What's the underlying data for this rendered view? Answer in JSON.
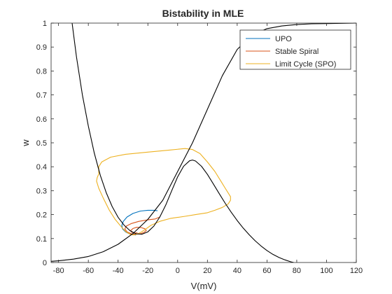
{
  "chart_data": {
    "type": "line",
    "title": "Bistability in MLE",
    "xlabel": "V(mV)",
    "ylabel": "w",
    "xlim": [
      -85,
      120
    ],
    "ylim": [
      0,
      1
    ],
    "xticks": [
      -80,
      -60,
      -40,
      -20,
      0,
      20,
      40,
      60,
      80,
      100,
      120
    ],
    "yticks": [
      0,
      0.1,
      0.2,
      0.3,
      0.4,
      0.5,
      0.6,
      0.7,
      0.8,
      0.9,
      1
    ],
    "xtick_labels": [
      "-80",
      "-60",
      "-40",
      "-20",
      "0",
      "20",
      "40",
      "60",
      "80",
      "100",
      "120"
    ],
    "ytick_labels": [
      "0",
      "0.1",
      "0.2",
      "0.3",
      "0.4",
      "0.5",
      "0.6",
      "0.7",
      "0.8",
      "0.9",
      "1"
    ],
    "grid": false,
    "legend_position": "top-right",
    "series": [
      {
        "name": "UPO",
        "color": "#0072BD",
        "x": [
          -13.5,
          -16,
          -20,
          -25,
          -30,
          -34,
          -36.5,
          -37.5,
          -37,
          -35,
          -32.5,
          -30,
          -28
        ],
        "y": [
          0.216,
          0.218,
          0.218,
          0.215,
          0.205,
          0.19,
          0.172,
          0.155,
          0.14,
          0.128,
          0.12,
          0.116,
          0.115
        ]
      },
      {
        "name": "Stable Spiral",
        "color": "#D95319",
        "x": [
          -12,
          -15,
          -20,
          -26,
          -31,
          -34.5,
          -35.5,
          -34,
          -31,
          -28,
          -25,
          -22.5,
          -21,
          -22,
          -24.5,
          -27.5,
          -30,
          -31.5,
          -31,
          -29,
          -27
        ],
        "y": [
          0.19,
          0.182,
          0.178,
          0.172,
          0.163,
          0.152,
          0.14,
          0.128,
          0.12,
          0.118,
          0.12,
          0.126,
          0.134,
          0.141,
          0.146,
          0.147,
          0.142,
          0.134,
          0.127,
          0.123,
          0.124
        ]
      },
      {
        "name": "Limit Cycle (SPO)",
        "color": "#EDB120",
        "x": [
          -53,
          -53,
          -51,
          -45,
          -35,
          -20,
          -5,
          5,
          10,
          15,
          20,
          25,
          29,
          32,
          34,
          35.5,
          35.5,
          34,
          30,
          25,
          20,
          12,
          5,
          -5,
          -12,
          -18,
          -22,
          -25,
          -28,
          -30,
          -32,
          -35,
          -38,
          -42,
          -46,
          -50,
          -53,
          -54.5,
          -54,
          -53
        ],
        "y": [
          0.37,
          0.4,
          0.42,
          0.44,
          0.452,
          0.461,
          0.47,
          0.476,
          0.472,
          0.455,
          0.42,
          0.38,
          0.34,
          0.31,
          0.29,
          0.275,
          0.26,
          0.245,
          0.23,
          0.218,
          0.208,
          0.2,
          0.193,
          0.184,
          0.172,
          0.155,
          0.137,
          0.125,
          0.117,
          0.115,
          0.118,
          0.13,
          0.15,
          0.18,
          0.22,
          0.27,
          0.31,
          0.34,
          0.355,
          0.37
        ]
      },
      {
        "color": "#000000",
        "x": [
          -71,
          -68,
          -64,
          -60,
          -56,
          -52,
          -48,
          -44,
          -40,
          -36,
          -32,
          -28,
          -24,
          -20,
          -16,
          -12,
          -8,
          -4,
          0,
          4,
          8,
          10,
          12,
          16,
          20,
          24,
          28,
          32,
          36,
          40,
          44,
          48,
          52,
          56,
          60,
          64,
          68,
          72,
          76,
          78
        ],
        "y": [
          1.005,
          0.86,
          0.7,
          0.57,
          0.457,
          0.365,
          0.292,
          0.234,
          0.189,
          0.156,
          0.133,
          0.12,
          0.118,
          0.128,
          0.152,
          0.19,
          0.24,
          0.3,
          0.358,
          0.402,
          0.425,
          0.428,
          0.424,
          0.402,
          0.368,
          0.328,
          0.287,
          0.247,
          0.21,
          0.175,
          0.144,
          0.116,
          0.091,
          0.069,
          0.05,
          0.034,
          0.021,
          0.011,
          0.003,
          0
        ]
      },
      {
        "color": "#000000",
        "x": [
          -85,
          -80,
          -70,
          -60,
          -50,
          -40,
          -30,
          -20,
          -10,
          0,
          10,
          20,
          30,
          40,
          50,
          60,
          70,
          80,
          90,
          100,
          110,
          120
        ],
        "y": [
          0.005,
          0.007,
          0.014,
          0.025,
          0.045,
          0.076,
          0.121,
          0.18,
          0.26,
          0.38,
          0.5,
          0.64,
          0.78,
          0.89,
          0.95,
          0.977,
          0.988,
          0.994,
          0.997,
          0.998,
          0.999,
          1.0
        ]
      }
    ]
  }
}
